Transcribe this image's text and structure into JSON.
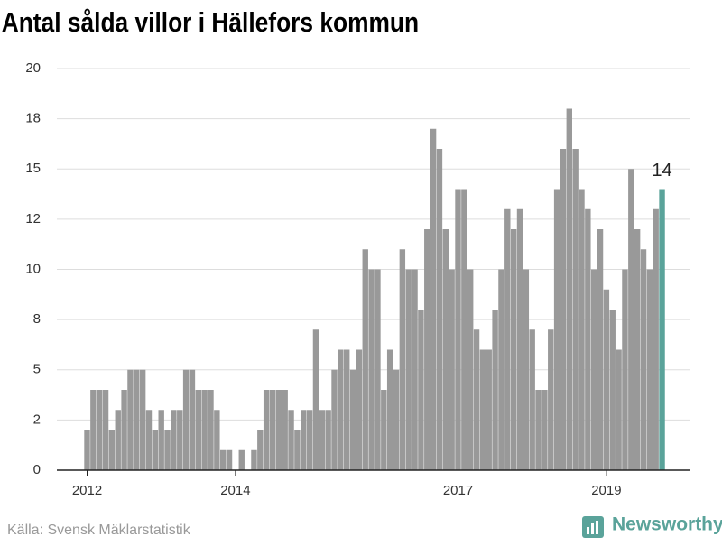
{
  "chart_data": {
    "type": "bar",
    "title": "Antal sålda villor i Hällefors kommun",
    "source": "Källa: Svensk Mäklarstatistik",
    "brand": "Newsworthy",
    "categories": [
      "2012",
      null,
      null,
      null,
      null,
      null,
      null,
      null,
      null,
      null,
      null,
      null,
      null,
      null,
      null,
      null,
      null,
      null,
      null,
      null,
      null,
      null,
      null,
      null,
      "2014",
      null,
      null,
      null,
      null,
      null,
      null,
      null,
      null,
      null,
      null,
      null,
      null,
      null,
      null,
      null,
      null,
      null,
      null,
      null,
      null,
      null,
      null,
      null,
      null,
      null,
      null,
      null,
      null,
      null,
      null,
      null,
      null,
      null,
      null,
      null,
      "2017",
      null,
      null,
      null,
      null,
      null,
      null,
      null,
      null,
      null,
      null,
      null,
      null,
      null,
      null,
      null,
      null,
      null,
      null,
      null,
      null,
      null,
      null,
      null,
      "2019",
      null,
      null,
      null,
      null,
      null,
      null,
      null,
      null,
      null
    ],
    "values": [
      2,
      4,
      4,
      4,
      2,
      3,
      4,
      5,
      5,
      5,
      3,
      2,
      3,
      2,
      3,
      3,
      5,
      5,
      4,
      4,
      4,
      3,
      1,
      1,
      0,
      1,
      0,
      1,
      2,
      4,
      4,
      4,
      4,
      3,
      2,
      3,
      3,
      7,
      3,
      3,
      5,
      6,
      6,
      5,
      6,
      11,
      10,
      10,
      4,
      6,
      5,
      11,
      10,
      10,
      8,
      12,
      17,
      16,
      12,
      10,
      14,
      14,
      10,
      7,
      6,
      6,
      8,
      10,
      13,
      12,
      13,
      10,
      7,
      4,
      4,
      7,
      14,
      16,
      18,
      16,
      14,
      13,
      10,
      12,
      9,
      8,
      6,
      10,
      15,
      12,
      11,
      10,
      13,
      14
    ],
    "color": "#999999",
    "highlight_color": "#5aa39a",
    "ylim": [
      0,
      20
    ],
    "yticks": [
      0,
      {
        "value": 2.5,
        "label": "2"
      },
      5,
      {
        "value": 7.5,
        "label": "8"
      },
      10,
      {
        "value": 12.5,
        "label": "12"
      },
      15,
      {
        "value": 17.5,
        "label": "18"
      },
      20
    ],
    "grid": true
  }
}
